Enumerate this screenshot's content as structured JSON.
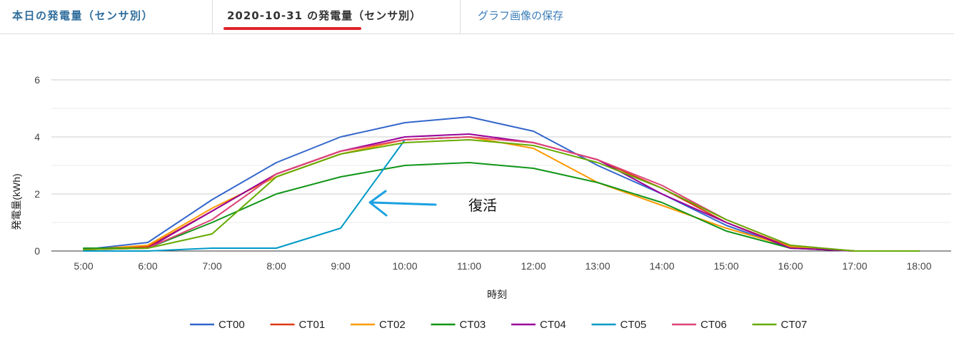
{
  "tabs": {
    "today_label": "本日の発電量（センサ別）",
    "date_label": "2020-10-31 の発電量（センサ別）",
    "save_label": "グラフ画像の保存"
  },
  "colors": {
    "tab_active_underline": "#e0232a",
    "tab_link": "#3a7cb8"
  },
  "chart_data": {
    "type": "line",
    "xlabel": "時刻",
    "ylabel": "発電量(kWh)",
    "ylim": [
      0,
      6
    ],
    "yticks": [
      0,
      2,
      4,
      6
    ],
    "grid": true,
    "legend_position": "bottom",
    "categories": [
      "5:00",
      "6:00",
      "7:00",
      "8:00",
      "9:00",
      "10:00",
      "11:00",
      "12:00",
      "13:00",
      "14:00",
      "15:00",
      "16:00",
      "17:00",
      "18:00"
    ],
    "series": [
      {
        "name": "CT00",
        "color": "#3366cc",
        "values": [
          0.05,
          0.3,
          1.8,
          3.1,
          4.0,
          4.5,
          4.7,
          4.2,
          3.0,
          2.0,
          0.9,
          0.1,
          0.0,
          0.0
        ]
      },
      {
        "name": "CT01",
        "color": "#dc3912",
        "values": [
          0.05,
          0.15,
          1.4,
          2.7,
          3.5,
          3.9,
          4.0,
          3.8,
          3.2,
          2.2,
          1.0,
          0.15,
          0.0,
          0.0
        ]
      },
      {
        "name": "CT02",
        "color": "#ff9900",
        "values": [
          0.05,
          0.2,
          1.5,
          2.6,
          3.4,
          3.9,
          4.0,
          3.6,
          2.4,
          1.6,
          0.8,
          0.15,
          0.0,
          0.0
        ]
      },
      {
        "name": "CT03",
        "color": "#109618",
        "values": [
          0.1,
          0.1,
          1.0,
          2.0,
          2.6,
          3.0,
          3.1,
          2.9,
          2.4,
          1.7,
          0.7,
          0.1,
          0.0,
          0.0
        ]
      },
      {
        "name": "CT04",
        "color": "#990099",
        "values": [
          0.05,
          0.1,
          1.4,
          2.7,
          3.5,
          4.0,
          4.1,
          3.8,
          3.2,
          2.0,
          1.0,
          0.1,
          0.0,
          0.0
        ]
      },
      {
        "name": "CT05",
        "color": "#0099c6",
        "values": [
          0.0,
          0.0,
          0.1,
          0.1,
          0.8,
          3.9,
          null,
          null,
          null,
          null,
          null,
          null,
          null,
          null
        ]
      },
      {
        "name": "CT06",
        "color": "#dd4477",
        "values": [
          0.05,
          0.1,
          1.1,
          2.7,
          3.5,
          3.9,
          4.0,
          3.8,
          3.2,
          2.3,
          1.1,
          0.2,
          0.0,
          0.0
        ]
      },
      {
        "name": "CT07",
        "color": "#66aa00",
        "values": [
          0.05,
          0.1,
          0.6,
          2.6,
          3.4,
          3.8,
          3.9,
          3.7,
          3.1,
          2.2,
          1.1,
          0.2,
          0.0,
          0.0
        ]
      }
    ],
    "annotation": {
      "text": "復活",
      "arrow_color": "#1ba1e2",
      "points_to": {
        "x": "9:30",
        "y": 1.8
      }
    }
  }
}
